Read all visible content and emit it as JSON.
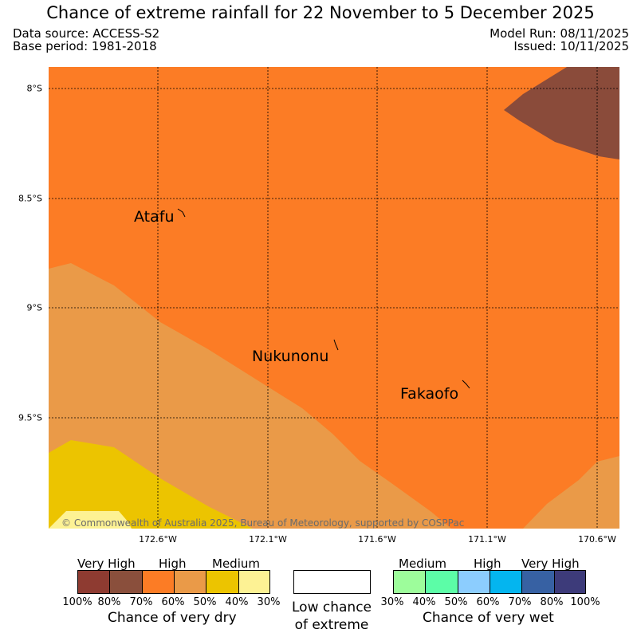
{
  "header": {
    "title": "Chance of extreme rainfall for 22 November to 5 December 2025",
    "data_source": "Data source: ACCESS-S2",
    "base_period": "Base period: 1981-2018",
    "model_run": "Model Run: 08/11/2025",
    "issued": "Issued: 10/11/2025"
  },
  "map": {
    "lat_labels": [
      "8°S",
      "8.5°S",
      "9°S",
      "9.5°S"
    ],
    "lon_labels": [
      "172.6°W",
      "172.1°W",
      "171.6°W",
      "171.1°W",
      "170.6°W"
    ],
    "places": [
      "Atafu",
      "Nukunonu",
      "Fakaofo"
    ],
    "copyright": "© Commonwealth of Australia 2025, Bureau of Meteorology, supported by COSPPac",
    "colors": {
      "very_high_dry": "#8a4b3a",
      "high_dry": "#fc7c25",
      "high_dry_light": "#ea9a48",
      "medium_dry": "#ecc400",
      "medium_dry_light": "#fdf294"
    }
  },
  "legend": {
    "dry": {
      "categories": [
        "Very High",
        "High",
        "Medium"
      ],
      "swatches": [
        "#8e3b31",
        "#8a4f3c",
        "#fc7c25",
        "#ea9a48",
        "#ecc400",
        "#fdf294"
      ],
      "ticks": [
        "100%",
        "80%",
        "70%",
        "60%",
        "50%",
        "40%",
        "30%"
      ],
      "title": "Chance of very dry"
    },
    "low": {
      "line1": "Low chance",
      "line2": "of extreme",
      "color": "#ffffff"
    },
    "wet": {
      "categories": [
        "Medium",
        "High",
        "Very High"
      ],
      "swatches": [
        "#9dfd9b",
        "#5cfda7",
        "#8ccdfe",
        "#04b5ef",
        "#3761a3",
        "#3d3b7a"
      ],
      "ticks": [
        "30%",
        "40%",
        "50%",
        "60%",
        "70%",
        "80%",
        "100%"
      ],
      "title": "Chance of very wet"
    }
  }
}
